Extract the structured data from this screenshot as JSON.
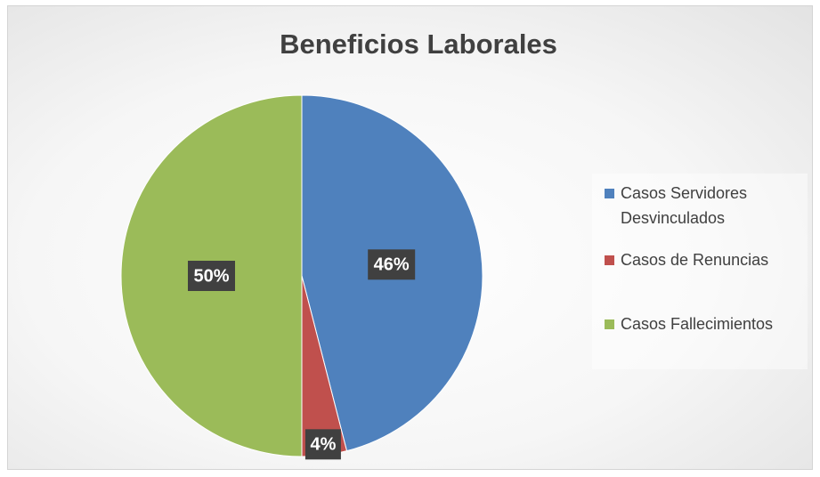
{
  "chart_data": {
    "type": "pie",
    "title": "Beneficios Laborales",
    "categories": [
      "Casos Servidores Desvinculados",
      "Casos de Renuncias",
      "Casos Fallecimientos"
    ],
    "values": [
      46,
      4,
      50
    ],
    "value_labels": [
      "46%",
      "4%",
      "50%"
    ],
    "colors": [
      "#4f81bd",
      "#c0504d",
      "#9bbb59"
    ],
    "legend": "right"
  }
}
